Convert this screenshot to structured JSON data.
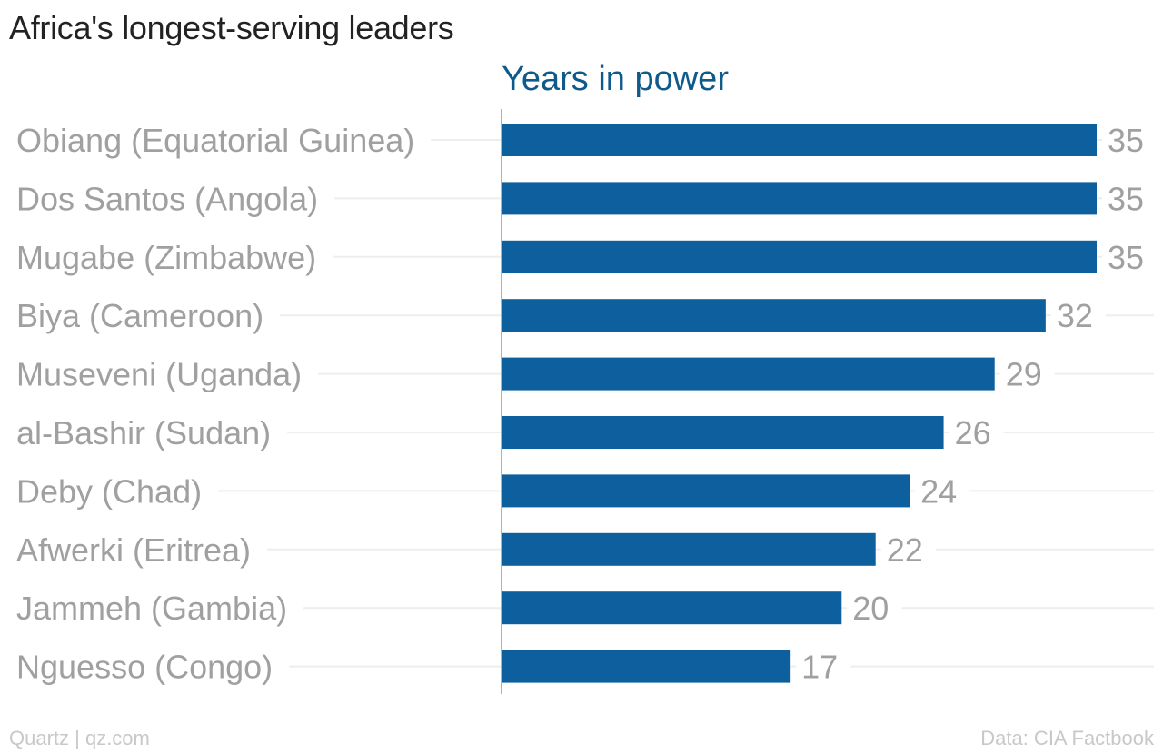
{
  "header": {
    "title": "Africa's longest-serving leaders",
    "series_label": "Years in power"
  },
  "footer": {
    "source_left": "Quartz | qz.com",
    "source_right": "Data: CIA Factbook"
  },
  "colors": {
    "bar": "#0e5f9e",
    "category_text": "#a0a0a0",
    "value_text": "#a0a0a0",
    "gridline": "#eeeeee",
    "axis": "#999999"
  },
  "chart_data": {
    "type": "bar",
    "orientation": "horizontal",
    "title": "Africa's longest-serving leaders",
    "categories": [
      "Obiang (Equatorial Guinea)",
      "Dos Santos (Angola)",
      "Mugabe (Zimbabwe)",
      "Biya (Cameroon)",
      "Museveni (Uganda)",
      "al-Bashir (Sudan)",
      "Deby (Chad)",
      "Afwerki (Eritrea)",
      "Jammeh (Gambia)",
      "Nguesso (Congo)"
    ],
    "series": [
      {
        "name": "Years in power",
        "values": [
          35,
          35,
          35,
          32,
          29,
          26,
          24,
          22,
          20,
          17
        ]
      }
    ],
    "xlim": [
      0,
      35
    ],
    "data_labels": true,
    "grid": true
  }
}
